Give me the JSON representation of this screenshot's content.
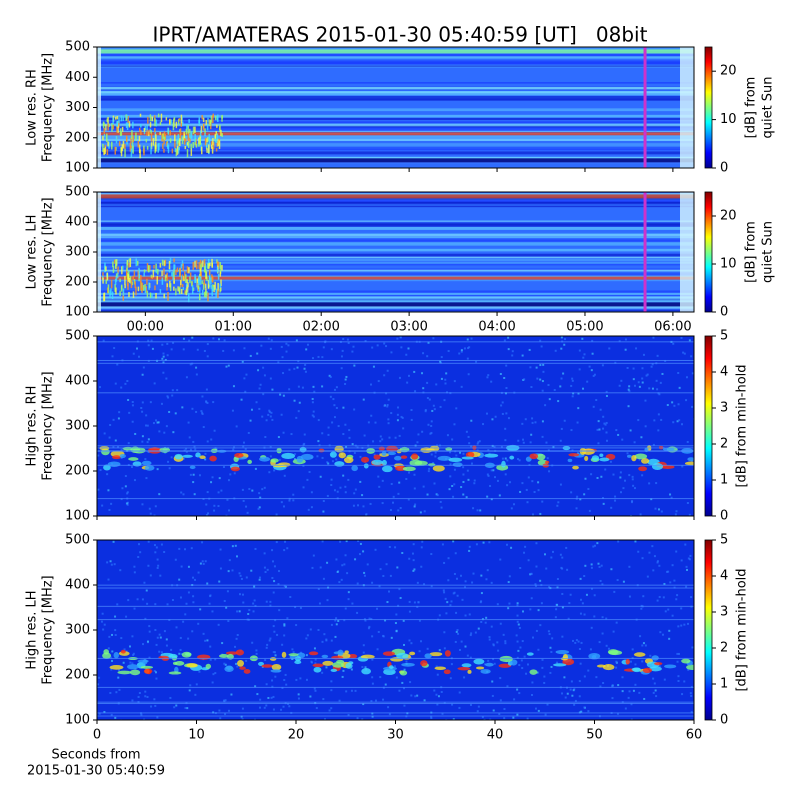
{
  "title": "IPRT/AMATERAS 2015-01-30 05:40:59 [UT]   08bit",
  "chart_data": [
    {
      "type": "heatmap",
      "ylabel": [
        "Low res. RH",
        "Frequency [MHz]"
      ],
      "ylim": [
        100,
        500
      ],
      "yticks": [
        100,
        200,
        300,
        400,
        500
      ],
      "xlim": [
        -0.55,
        6.24
      ],
      "marker": {
        "x": 5.6831,
        "color": "#cc33cc"
      },
      "colorbar": {
        "label": [
          "[dB] from",
          "quiet Sun"
        ],
        "lim": [
          0,
          25
        ],
        "ticks": [
          0,
          10,
          20
        ]
      }
    },
    {
      "type": "heatmap",
      "ylabel": [
        "Low res. LH",
        "Frequency [MHz]"
      ],
      "ylim": [
        100,
        500
      ],
      "yticks": [
        100,
        200,
        300,
        400,
        500
      ],
      "xlim": [
        -0.55,
        6.24
      ],
      "xticks": [
        {
          "value": 0,
          "label": "00:00"
        },
        {
          "value": 1,
          "label": "01:00"
        },
        {
          "value": 2,
          "label": "02:00"
        },
        {
          "value": 3,
          "label": "03:00"
        },
        {
          "value": 4,
          "label": "04:00"
        },
        {
          "value": 5,
          "label": "05:00"
        },
        {
          "value": 6,
          "label": "06:00"
        }
      ],
      "marker": {
        "x": 5.6831,
        "color": "#cc33cc"
      },
      "colorbar": {
        "label": [
          "[dB] from",
          "quiet Sun"
        ],
        "lim": [
          0,
          25
        ],
        "ticks": [
          0,
          10,
          20
        ]
      }
    },
    {
      "type": "heatmap",
      "ylabel": [
        "High res. RH",
        "Frequency [MHz]"
      ],
      "ylim": [
        100,
        500
      ],
      "yticks": [
        100,
        200,
        300,
        400,
        500
      ],
      "xlim": [
        0,
        60
      ],
      "colorbar": {
        "label": [
          "[dB] from min-hold"
        ],
        "lim": [
          0,
          5
        ],
        "ticks": [
          0,
          1,
          2,
          3,
          4,
          5
        ]
      }
    },
    {
      "type": "heatmap",
      "ylabel": [
        "High res. LH",
        "Frequency [MHz]"
      ],
      "ylim": [
        100,
        500
      ],
      "yticks": [
        100,
        200,
        300,
        400,
        500
      ],
      "xlim": [
        0,
        60
      ],
      "xticks": [
        0,
        10,
        20,
        30,
        40,
        50,
        60
      ],
      "xlabel": [
        "Seconds from",
        "2015-01-30 05:40:59"
      ],
      "colorbar": {
        "label": [
          "[dB] from min-hold"
        ],
        "lim": [
          0,
          5
        ],
        "ticks": [
          0,
          1,
          2,
          3,
          4,
          5
        ]
      }
    }
  ]
}
